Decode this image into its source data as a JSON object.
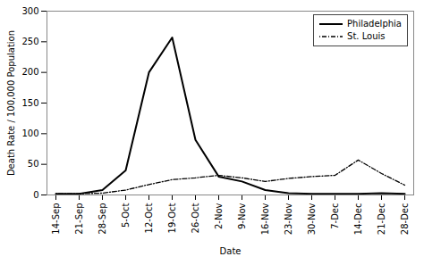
{
  "chart_data": {
    "type": "line",
    "xlabel": "Date",
    "ylabel": "Death Rate / 100,000 Population",
    "categories": [
      "14-Sep",
      "21-Sep",
      "28-Sep",
      "5-Oct",
      "12-Oct",
      "19-Oct",
      "26-Oct",
      "2-Nov",
      "9-Nov",
      "16-Nov",
      "23-Nov",
      "30-Nov",
      "7-Dec",
      "14-Dec",
      "21-Dec",
      "28-Dec"
    ],
    "series": [
      {
        "name": "Philadelphia",
        "color": "#000000",
        "line_style": "solid",
        "values": [
          2,
          2,
          8,
          40,
          200,
          257,
          90,
          30,
          22,
          8,
          3,
          2,
          2,
          2,
          3,
          2
        ]
      },
      {
        "name": "St. Louis",
        "color": "#000000",
        "line_style": "dashdot",
        "values": [
          2,
          2,
          3,
          8,
          17,
          25,
          28,
          32,
          28,
          22,
          27,
          30,
          32,
          57,
          35,
          16
        ]
      }
    ],
    "ylim": [
      0,
      300
    ],
    "yticks": [
      0,
      50,
      100,
      150,
      200,
      250,
      300
    ],
    "grid": false,
    "legend": "upper right"
  }
}
